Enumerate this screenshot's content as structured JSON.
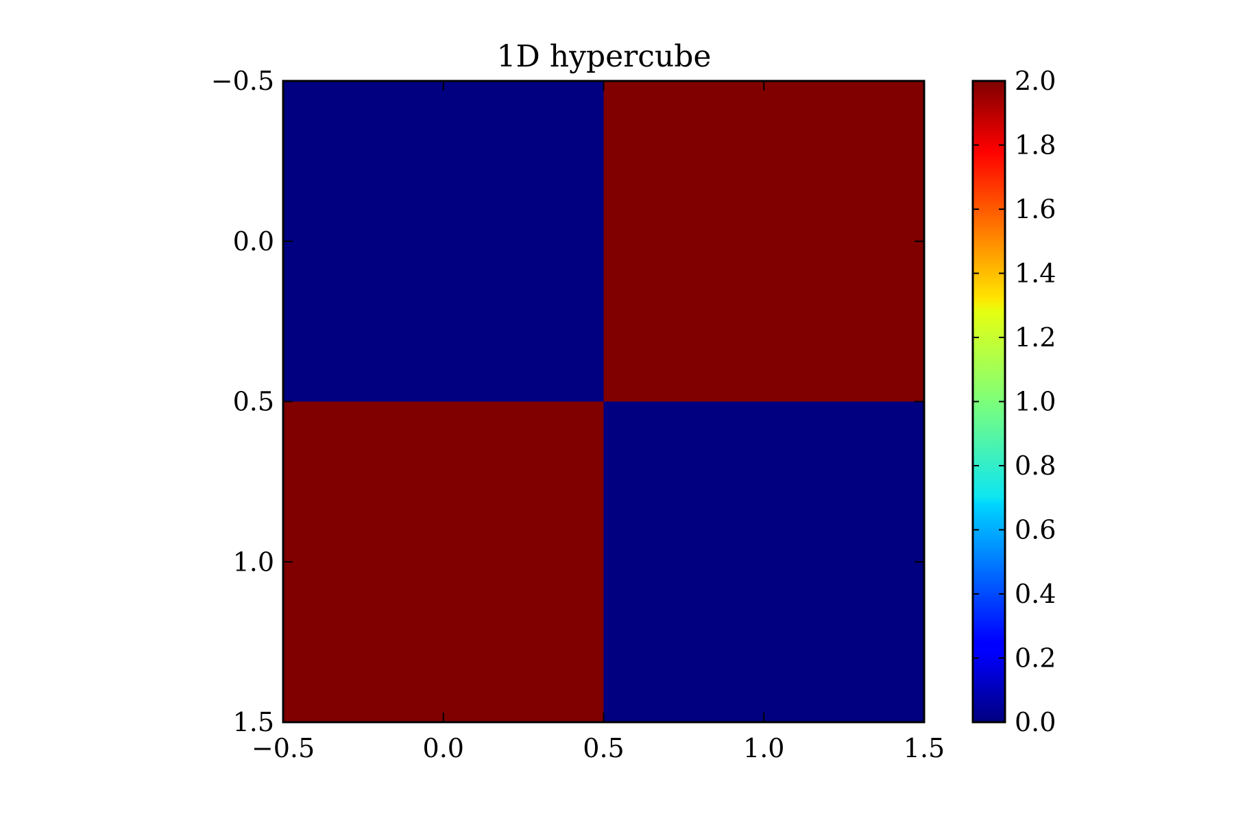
{
  "chart_data": {
    "type": "heatmap",
    "title": "1D hypercube",
    "xlabel": "",
    "ylabel": "",
    "xlim": [
      -0.5,
      1.5
    ],
    "ylim": [
      1.5,
      -0.5
    ],
    "x_ticks": [
      -0.5,
      0.0,
      0.5,
      1.0,
      1.5
    ],
    "y_ticks": [
      -0.5,
      0.0,
      0.5,
      1.0,
      1.5
    ],
    "x_tick_labels": [
      "−0.5",
      "0.0",
      "0.5",
      "1.0",
      "1.5"
    ],
    "y_tick_labels": [
      "−0.5",
      "0.0",
      "0.5",
      "1.0",
      "1.5"
    ],
    "rows": [
      0,
      1
    ],
    "cols": [
      0,
      1
    ],
    "values": [
      [
        0,
        2
      ],
      [
        2,
        0
      ]
    ],
    "colormap": "jet",
    "colorbar": {
      "min": 0.0,
      "max": 2.0,
      "ticks": [
        0.0,
        0.2,
        0.4,
        0.6,
        0.8,
        1.0,
        1.2,
        1.4,
        1.6,
        1.8,
        2.0
      ],
      "tick_labels": [
        "0.0",
        "0.2",
        "0.4",
        "0.6",
        "0.8",
        "1.0",
        "1.2",
        "1.4",
        "1.6",
        "1.8",
        "2.0"
      ]
    },
    "grid": false
  },
  "colors": {
    "low": "#00007f",
    "high": "#7f0000",
    "axis": "#000000"
  }
}
